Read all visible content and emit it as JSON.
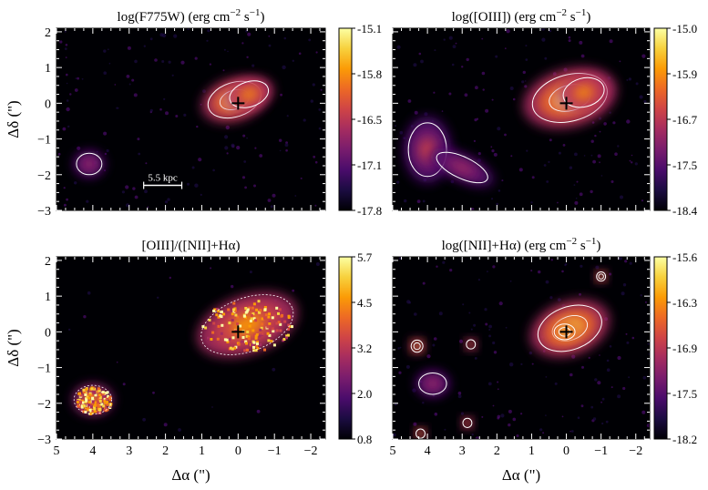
{
  "chart_data": [
    {
      "type": "heatmap",
      "panel": "top-left",
      "title": "log(F775W) (erg cm⁻² s⁻¹)",
      "title_parts": {
        "pre": "log(F775W) (erg cm",
        "sup1": "−2",
        "mid": " s",
        "sup2": "−1",
        "post": ")"
      },
      "xlim": [
        5,
        -2.4
      ],
      "ylim": [
        -3,
        2.1
      ],
      "x_ticks": [
        "5",
        "4",
        "3",
        "2",
        "1",
        "0",
        "−1",
        "−2"
      ],
      "y_ticks": [
        "2",
        "1",
        "0",
        "−1",
        "−2",
        "−3"
      ],
      "colorbar": {
        "range": [
          -17.8,
          -15.1
        ],
        "ticks": [
          "-15.1",
          "-15.8",
          "-16.5",
          "-17.1",
          "-17.8"
        ]
      },
      "center_marker": [
        0,
        0
      ],
      "annotation": "5.5 kpc",
      "scalebar_x": [
        2.6,
        1.55
      ],
      "scalebar_y": -2.3,
      "blobs": [
        {
          "x": 0.1,
          "y": 0.1,
          "rx": 0.75,
          "ry": 0.48,
          "rot": -18,
          "level": 0.95
        },
        {
          "x": -0.3,
          "y": 0.25,
          "rx": 0.55,
          "ry": 0.35,
          "rot": -18,
          "level": 0.75
        },
        {
          "x": 4.1,
          "y": -1.7,
          "rx": 0.35,
          "ry": 0.3,
          "rot": 0,
          "level": 0.35
        }
      ]
    },
    {
      "type": "heatmap",
      "panel": "top-right",
      "title": "log([OIII]) (erg cm⁻² s⁻¹)",
      "title_parts": {
        "pre": "log([OIII]) (erg cm",
        "sup1": "−2",
        "mid": " s",
        "sup2": "−1",
        "post": ")"
      },
      "xlim": [
        5,
        -2.4
      ],
      "ylim": [
        -3,
        2.1
      ],
      "x_ticks": [
        "5",
        "4",
        "3",
        "2",
        "1",
        "0",
        "−1",
        "−2"
      ],
      "y_ticks": [
        "2",
        "1",
        "0",
        "−1",
        "−2",
        "−3"
      ],
      "colorbar": {
        "range": [
          -18.4,
          -15.0
        ],
        "ticks": [
          "-15.0",
          "-15.9",
          "-16.7",
          "-17.5",
          "-18.4"
        ]
      },
      "center_marker": [
        0,
        0
      ],
      "blobs": [
        {
          "x": -0.1,
          "y": 0.15,
          "rx": 1.1,
          "ry": 0.65,
          "rot": -15,
          "level": 0.9
        },
        {
          "x": -0.5,
          "y": 0.3,
          "rx": 0.6,
          "ry": 0.4,
          "rot": -15,
          "level": 0.75
        },
        {
          "x": 4.0,
          "y": -1.3,
          "rx": 0.55,
          "ry": 0.75,
          "rot": 0,
          "level": 0.45
        },
        {
          "x": 3.0,
          "y": -1.8,
          "rx": 0.8,
          "ry": 0.3,
          "rot": 25,
          "level": 0.4
        }
      ]
    },
    {
      "type": "heatmap",
      "panel": "bottom-left",
      "title": "[OIII]/([NII]+Hα)",
      "title_parts": {
        "pre": "[OIII]/([NII]+Hα)",
        "sup1": "",
        "mid": "",
        "sup2": "",
        "post": ""
      },
      "xlim": [
        5,
        -2.4
      ],
      "ylim": [
        -3,
        2.1
      ],
      "x_ticks": [
        "5",
        "4",
        "3",
        "2",
        "1",
        "0",
        "−1",
        "−2"
      ],
      "y_ticks": [
        "2",
        "1",
        "0",
        "−1",
        "−2",
        "−3"
      ],
      "xlabel": "Δα (\")",
      "colorbar": {
        "range": [
          0.8,
          5.7
        ],
        "ticks": [
          "5.7",
          "4.5",
          "3.2",
          "2.0",
          "0.8"
        ]
      },
      "center_marker": [
        0,
        0
      ],
      "blobs": [
        {
          "x": -0.25,
          "y": 0.2,
          "rx": 1.15,
          "ry": 0.65,
          "rot": -20,
          "level": 0.75
        },
        {
          "x": 4.0,
          "y": -1.9,
          "rx": 0.45,
          "ry": 0.35,
          "rot": 0,
          "level": 0.7
        }
      ]
    },
    {
      "type": "heatmap",
      "panel": "bottom-right",
      "title": "log([NII]+Hα) (erg cm⁻² s⁻¹)",
      "title_parts": {
        "pre": "log([NII]+Hα) (erg cm",
        "sup1": "−2",
        "mid": " s",
        "sup2": "−1",
        "post": ")"
      },
      "xlim": [
        5,
        -2.4
      ],
      "ylim": [
        -3,
        2.1
      ],
      "x_ticks": [
        "5",
        "4",
        "3",
        "2",
        "1",
        "0",
        "−1",
        "−2"
      ],
      "y_ticks": [
        "2",
        "1",
        "0",
        "−1",
        "−2",
        "−3"
      ],
      "xlabel": "Δα (\")",
      "colorbar": {
        "range": [
          -18.2,
          -15.6
        ],
        "ticks": [
          "-15.6",
          "-16.3",
          "-16.9",
          "-17.5",
          "-18.2"
        ]
      },
      "center_marker": [
        0,
        0
      ],
      "blobs": [
        {
          "x": -0.1,
          "y": 0.1,
          "rx": 0.95,
          "ry": 0.6,
          "rot": -20,
          "level": 0.85
        },
        {
          "x": 0.05,
          "y": 0.0,
          "rx": 0.3,
          "ry": 0.22,
          "rot": 0,
          "level": 1.0
        },
        {
          "x": 4.3,
          "y": -0.4,
          "rx": 0.17,
          "ry": 0.17,
          "rot": 0,
          "level": 0.85
        },
        {
          "x": 2.75,
          "y": -0.35,
          "rx": 0.13,
          "ry": 0.13,
          "rot": 0,
          "level": 0.75
        },
        {
          "x": -1.0,
          "y": 1.55,
          "rx": 0.13,
          "ry": 0.13,
          "rot": 0,
          "level": 0.85
        },
        {
          "x": 4.2,
          "y": -2.85,
          "rx": 0.13,
          "ry": 0.13,
          "rot": 0,
          "level": 0.8
        },
        {
          "x": 2.85,
          "y": -2.55,
          "rx": 0.13,
          "ry": 0.13,
          "rot": 0,
          "level": 0.75
        },
        {
          "x": 3.85,
          "y": -1.45,
          "rx": 0.4,
          "ry": 0.3,
          "rot": 0,
          "level": 0.35
        }
      ]
    }
  ],
  "ylabel": "Δδ (\")",
  "colormap": [
    "#000004",
    "#1b0c41",
    "#4a0c6b",
    "#781c6d",
    "#a52c60",
    "#cf4446",
    "#ed6925",
    "#fb9b06",
    "#f7d13d",
    "#fcffa4"
  ],
  "contour_color": "#ffffff",
  "marker_color": "#000000"
}
